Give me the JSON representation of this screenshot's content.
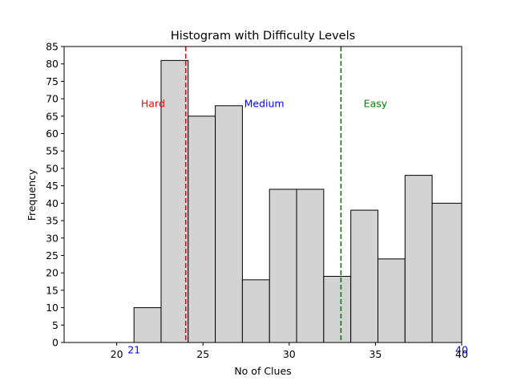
{
  "chart_data": {
    "type": "bar",
    "title": "Histogram with Difficulty Levels",
    "xlabel": "No of Clues",
    "ylabel": "Frequency",
    "xlim": [
      16.95,
      40
    ],
    "ylim": [
      0,
      85
    ],
    "x_ticks": [
      20,
      25,
      30,
      35,
      40
    ],
    "y_ticks": [
      0,
      5,
      10,
      15,
      20,
      25,
      30,
      35,
      40,
      45,
      50,
      55,
      60,
      65,
      70,
      75,
      80,
      85
    ],
    "bin_edges": [
      21,
      22.5714,
      24.1429,
      25.7143,
      27.2857,
      28.8571,
      30.4286,
      32,
      33.5714,
      35.1429,
      36.7143,
      38.2857,
      40
    ],
    "bins": [
      {
        "range": [
          21,
          22.5714
        ],
        "value": 10
      },
      {
        "range": [
          22.5714,
          24.1429
        ],
        "value": 81
      },
      {
        "range": [
          24.1429,
          25.7143
        ],
        "value": 65
      },
      {
        "range": [
          25.7143,
          27.2857
        ],
        "value": 68
      },
      {
        "range": [
          27.2857,
          28.8571
        ],
        "value": 18
      },
      {
        "range": [
          28.8571,
          30.4286
        ],
        "value": 44
      },
      {
        "range": [
          30.4286,
          32
        ],
        "value": 44
      },
      {
        "range": [
          32,
          33.5714
        ],
        "value": 19
      },
      {
        "range": [
          33.5714,
          35.1429
        ],
        "value": 38
      },
      {
        "range": [
          35.1429,
          36.7143
        ],
        "value": 24
      },
      {
        "range": [
          36.7143,
          38.2857
        ],
        "value": 48
      },
      {
        "range": [
          38.2857,
          40
        ],
        "value": 40
      }
    ],
    "bar_color": "#d3d3d3",
    "bar_edge_color": "#000000",
    "threshold_lines": [
      {
        "x": 24,
        "color": "#ff0000",
        "style": "dashed"
      },
      {
        "x": 33,
        "color": "#008000",
        "style": "dashed"
      }
    ],
    "annotations": [
      {
        "text": "Hard",
        "x": 22.1,
        "y": 68.5,
        "color": "#ff0000"
      },
      {
        "text": "Medium",
        "x": 28.55,
        "y": 68.5,
        "color": "#0000ff"
      },
      {
        "text": "Easy",
        "x": 35,
        "y": 68.5,
        "color": "#008000"
      },
      {
        "text": "21",
        "x": 21,
        "y": -2.2,
        "color": "#0000ff"
      },
      {
        "text": "40",
        "x": 40,
        "y": -2.2,
        "color": "#0000ff"
      }
    ],
    "grid": false,
    "legend": null
  }
}
